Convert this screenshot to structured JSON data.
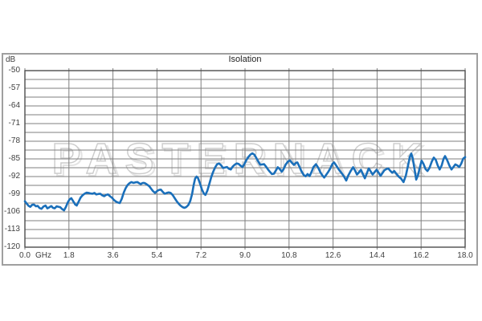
{
  "watermark": {
    "text": "PASTERNACK"
  },
  "colors": {
    "curve": "#1a6fba",
    "grid": "#7f7f7f",
    "plot_border": "#4d4d4d",
    "outer_border": "#9f9f9f",
    "text": "#3f3f3f",
    "title": "#1f1f1f",
    "watermark_outline": "#cccccc",
    "background": "#ffffff"
  },
  "chart_data": {
    "type": "line",
    "title": "Isolation",
    "ylabel": "dB",
    "xlabel": "GHz",
    "xlim": [
      0,
      18
    ],
    "ylim": [
      -120,
      -50
    ],
    "x_tick_values": [
      0,
      1.8,
      3.6,
      5.4,
      7.2,
      9.0,
      10.8,
      12.6,
      14.4,
      16.2,
      18.0
    ],
    "x_tick_labels": [
      "0.0",
      "1.8",
      "3.6",
      "5.4",
      "7.2",
      "9.0",
      "10.8",
      "12.6",
      "14.4",
      "16.2",
      "18.0"
    ],
    "y_tick_values": [
      -50,
      -57,
      -64,
      -71,
      -78,
      -85,
      -92,
      -99,
      -106,
      -113,
      -120
    ],
    "y_tick_labels": [
      "-50",
      "-57",
      "-64",
      "-71",
      "-78",
      "-85",
      "-92",
      "-99",
      "-106",
      "-113",
      "-120"
    ],
    "grid": {
      "h_minor_step_db": 3.5,
      "v_step_ghz": 1.8,
      "on": true
    },
    "legend": "none",
    "series": [
      {
        "name": "Isolation",
        "points": [
          [
            0.0,
            -101.8
          ],
          [
            0.08,
            -102.8
          ],
          [
            0.15,
            -103.6
          ],
          [
            0.22,
            -104.0
          ],
          [
            0.3,
            -103.2
          ],
          [
            0.37,
            -103.1
          ],
          [
            0.45,
            -103.8
          ],
          [
            0.52,
            -103.6
          ],
          [
            0.6,
            -104.5
          ],
          [
            0.68,
            -104.8
          ],
          [
            0.76,
            -103.9
          ],
          [
            0.84,
            -103.5
          ],
          [
            0.92,
            -104.6
          ],
          [
            1.0,
            -104.2
          ],
          [
            1.08,
            -103.7
          ],
          [
            1.15,
            -104.4
          ],
          [
            1.22,
            -104.6
          ],
          [
            1.3,
            -103.8
          ],
          [
            1.38,
            -104.0
          ],
          [
            1.45,
            -104.2
          ],
          [
            1.52,
            -104.9
          ],
          [
            1.6,
            -105.4
          ],
          [
            1.68,
            -104.0
          ],
          [
            1.75,
            -102.3
          ],
          [
            1.83,
            -101.0
          ],
          [
            1.9,
            -100.6
          ],
          [
            1.98,
            -101.9
          ],
          [
            2.06,
            -103.1
          ],
          [
            2.12,
            -103.5
          ],
          [
            2.2,
            -101.9
          ],
          [
            2.28,
            -100.3
          ],
          [
            2.36,
            -99.4
          ],
          [
            2.44,
            -98.8
          ],
          [
            2.52,
            -98.4
          ],
          [
            2.6,
            -98.5
          ],
          [
            2.68,
            -98.7
          ],
          [
            2.76,
            -98.8
          ],
          [
            2.84,
            -98.5
          ],
          [
            2.92,
            -99.1
          ],
          [
            3.0,
            -98.9
          ],
          [
            3.08,
            -98.8
          ],
          [
            3.16,
            -99.4
          ],
          [
            3.24,
            -99.8
          ],
          [
            3.32,
            -99.3
          ],
          [
            3.4,
            -99.1
          ],
          [
            3.48,
            -99.8
          ],
          [
            3.56,
            -100.4
          ],
          [
            3.64,
            -101.3
          ],
          [
            3.72,
            -101.9
          ],
          [
            3.8,
            -102.3
          ],
          [
            3.88,
            -102.5
          ],
          [
            3.96,
            -100.8
          ],
          [
            4.04,
            -98.4
          ],
          [
            4.12,
            -96.6
          ],
          [
            4.2,
            -95.3
          ],
          [
            4.28,
            -94.6
          ],
          [
            4.36,
            -94.2
          ],
          [
            4.44,
            -94.5
          ],
          [
            4.52,
            -94.3
          ],
          [
            4.6,
            -94.2
          ],
          [
            4.68,
            -94.7
          ],
          [
            4.74,
            -95.0
          ],
          [
            4.8,
            -94.6
          ],
          [
            4.86,
            -94.5
          ],
          [
            4.92,
            -94.7
          ],
          [
            5.0,
            -95.2
          ],
          [
            5.08,
            -95.8
          ],
          [
            5.16,
            -96.8
          ],
          [
            5.24,
            -97.8
          ],
          [
            5.32,
            -98.5
          ],
          [
            5.4,
            -97.8
          ],
          [
            5.48,
            -97.3
          ],
          [
            5.56,
            -97.2
          ],
          [
            5.64,
            -98.1
          ],
          [
            5.72,
            -98.8
          ],
          [
            5.8,
            -98.5
          ],
          [
            5.88,
            -98.3
          ],
          [
            5.96,
            -98.5
          ],
          [
            6.04,
            -99.3
          ],
          [
            6.12,
            -100.5
          ],
          [
            6.2,
            -101.7
          ],
          [
            6.28,
            -102.7
          ],
          [
            6.36,
            -103.5
          ],
          [
            6.44,
            -104.1
          ],
          [
            6.52,
            -104.4
          ],
          [
            6.6,
            -104.1
          ],
          [
            6.68,
            -103.3
          ],
          [
            6.76,
            -101.7
          ],
          [
            6.84,
            -98.8
          ],
          [
            6.9,
            -95.3
          ],
          [
            6.96,
            -92.8
          ],
          [
            7.02,
            -92.0
          ],
          [
            7.08,
            -92.6
          ],
          [
            7.16,
            -94.8
          ],
          [
            7.24,
            -97.2
          ],
          [
            7.32,
            -98.8
          ],
          [
            7.38,
            -99.3
          ],
          [
            7.46,
            -97.6
          ],
          [
            7.54,
            -94.9
          ],
          [
            7.62,
            -92.2
          ],
          [
            7.7,
            -90.1
          ],
          [
            7.78,
            -88.3
          ],
          [
            7.86,
            -87.1
          ],
          [
            7.94,
            -86.8
          ],
          [
            8.02,
            -87.5
          ],
          [
            8.1,
            -88.6
          ],
          [
            8.18,
            -88.4
          ],
          [
            8.26,
            -88.2
          ],
          [
            8.34,
            -88.9
          ],
          [
            8.42,
            -89.2
          ],
          [
            8.5,
            -88.0
          ],
          [
            8.58,
            -87.3
          ],
          [
            8.66,
            -86.8
          ],
          [
            8.74,
            -87.0
          ],
          [
            8.82,
            -87.7
          ],
          [
            8.9,
            -88.2
          ],
          [
            8.98,
            -86.9
          ],
          [
            9.06,
            -85.4
          ],
          [
            9.14,
            -84.2
          ],
          [
            9.22,
            -83.3
          ],
          [
            9.3,
            -82.8
          ],
          [
            9.38,
            -83.3
          ],
          [
            9.46,
            -84.6
          ],
          [
            9.54,
            -86.0
          ],
          [
            9.62,
            -87.3
          ],
          [
            9.7,
            -87.2
          ],
          [
            9.78,
            -87.1
          ],
          [
            9.86,
            -88.1
          ],
          [
            9.94,
            -89.2
          ],
          [
            10.02,
            -90.2
          ],
          [
            10.1,
            -91.0
          ],
          [
            10.18,
            -90.9
          ],
          [
            10.26,
            -89.6
          ],
          [
            10.34,
            -88.3
          ],
          [
            10.42,
            -89.0
          ],
          [
            10.5,
            -90.1
          ],
          [
            10.58,
            -89.0
          ],
          [
            10.66,
            -87.3
          ],
          [
            10.76,
            -86.0
          ],
          [
            10.84,
            -85.6
          ],
          [
            10.92,
            -86.6
          ],
          [
            11.0,
            -87.4
          ],
          [
            11.08,
            -86.6
          ],
          [
            11.14,
            -86.4
          ],
          [
            11.22,
            -88.0
          ],
          [
            11.3,
            -89.7
          ],
          [
            11.4,
            -91.4
          ],
          [
            11.48,
            -91.9
          ],
          [
            11.56,
            -91.0
          ],
          [
            11.64,
            -91.8
          ],
          [
            11.72,
            -90.2
          ],
          [
            11.8,
            -88.2
          ],
          [
            11.9,
            -87.1
          ],
          [
            12.0,
            -88.6
          ],
          [
            12.08,
            -90.3
          ],
          [
            12.16,
            -91.5
          ],
          [
            12.24,
            -92.4
          ],
          [
            12.32,
            -91.3
          ],
          [
            12.4,
            -90.2
          ],
          [
            12.48,
            -88.9
          ],
          [
            12.58,
            -86.9
          ],
          [
            12.64,
            -86.4
          ],
          [
            12.72,
            -87.5
          ],
          [
            12.8,
            -88.7
          ],
          [
            12.88,
            -89.8
          ],
          [
            12.98,
            -91.0
          ],
          [
            13.06,
            -92.2
          ],
          [
            13.14,
            -93.6
          ],
          [
            13.22,
            -91.6
          ],
          [
            13.32,
            -89.8
          ],
          [
            13.42,
            -88.3
          ],
          [
            13.5,
            -89.6
          ],
          [
            13.58,
            -91.2
          ],
          [
            13.66,
            -90.3
          ],
          [
            13.74,
            -89.3
          ],
          [
            13.82,
            -91.0
          ],
          [
            13.9,
            -92.7
          ],
          [
            13.98,
            -90.8
          ],
          [
            14.06,
            -88.8
          ],
          [
            14.14,
            -90.0
          ],
          [
            14.22,
            -91.2
          ],
          [
            14.3,
            -90.2
          ],
          [
            14.38,
            -89.3
          ],
          [
            14.46,
            -90.4
          ],
          [
            14.54,
            -91.7
          ],
          [
            14.62,
            -90.6
          ],
          [
            14.7,
            -89.5
          ],
          [
            14.78,
            -89.0
          ],
          [
            14.86,
            -88.8
          ],
          [
            14.94,
            -89.7
          ],
          [
            15.02,
            -90.5
          ],
          [
            15.1,
            -89.8
          ],
          [
            15.18,
            -90.8
          ],
          [
            15.28,
            -92.0
          ],
          [
            15.38,
            -92.8
          ],
          [
            15.48,
            -94.2
          ],
          [
            15.58,
            -91.5
          ],
          [
            15.66,
            -87.8
          ],
          [
            15.74,
            -84.2
          ],
          [
            15.8,
            -82.9
          ],
          [
            15.86,
            -84.8
          ],
          [
            15.93,
            -89.0
          ],
          [
            16.0,
            -93.2
          ],
          [
            16.07,
            -91.6
          ],
          [
            16.15,
            -88.3
          ],
          [
            16.22,
            -85.7
          ],
          [
            16.3,
            -87.0
          ],
          [
            16.38,
            -89.0
          ],
          [
            16.46,
            -89.8
          ],
          [
            16.54,
            -88.6
          ],
          [
            16.64,
            -86.0
          ],
          [
            16.72,
            -84.5
          ],
          [
            16.8,
            -85.4
          ],
          [
            16.88,
            -87.6
          ],
          [
            16.96,
            -89.2
          ],
          [
            17.04,
            -87.6
          ],
          [
            17.12,
            -84.9
          ],
          [
            17.18,
            -83.9
          ],
          [
            17.26,
            -85.4
          ],
          [
            17.36,
            -87.7
          ],
          [
            17.44,
            -89.2
          ],
          [
            17.52,
            -88.2
          ],
          [
            17.6,
            -87.2
          ],
          [
            17.68,
            -87.6
          ],
          [
            17.76,
            -88.2
          ],
          [
            17.84,
            -86.9
          ],
          [
            17.92,
            -84.9
          ],
          [
            18.0,
            -84.3
          ]
        ]
      }
    ]
  }
}
